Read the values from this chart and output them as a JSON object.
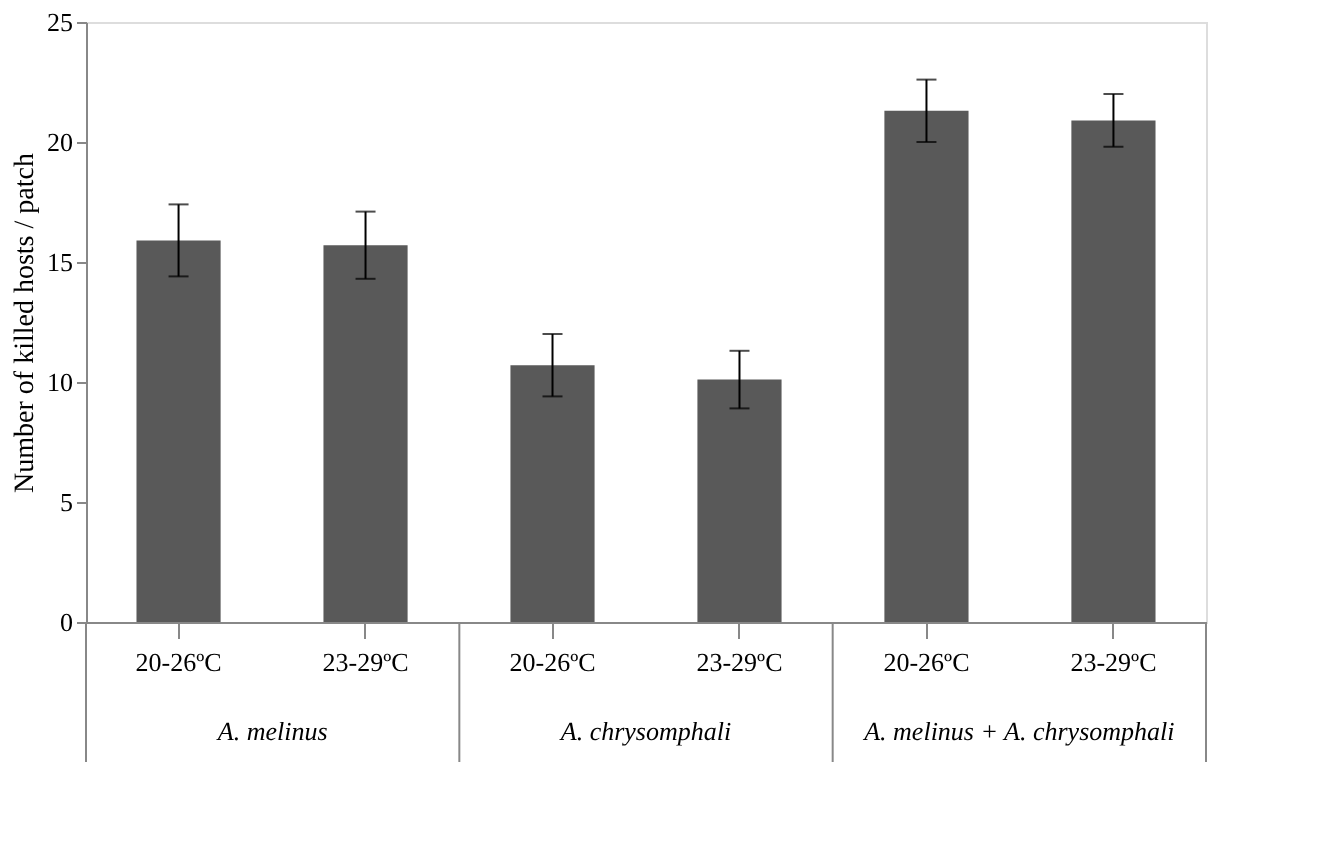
{
  "chart_data": {
    "type": "bar",
    "ylabel": "Number of killed  hosts / patch",
    "categories": [
      "20-26ºC",
      "23-29ºC",
      "20-26ºC",
      "23-29ºC",
      "20-26ºC",
      "23-29ºC"
    ],
    "values": [
      15.9,
      15.7,
      10.7,
      10.1,
      21.3,
      20.9
    ],
    "errors": [
      1.5,
      1.4,
      1.3,
      1.2,
      1.3,
      1.1
    ],
    "color": "#595959",
    "ylim": [
      0,
      25
    ],
    "yticks": [
      0,
      5,
      10,
      15,
      20,
      25
    ],
    "grid": false,
    "annotations": [
      "A. melinus",
      "A. chrysomphali",
      "A. melinus + A. chrysomphali"
    ]
  }
}
